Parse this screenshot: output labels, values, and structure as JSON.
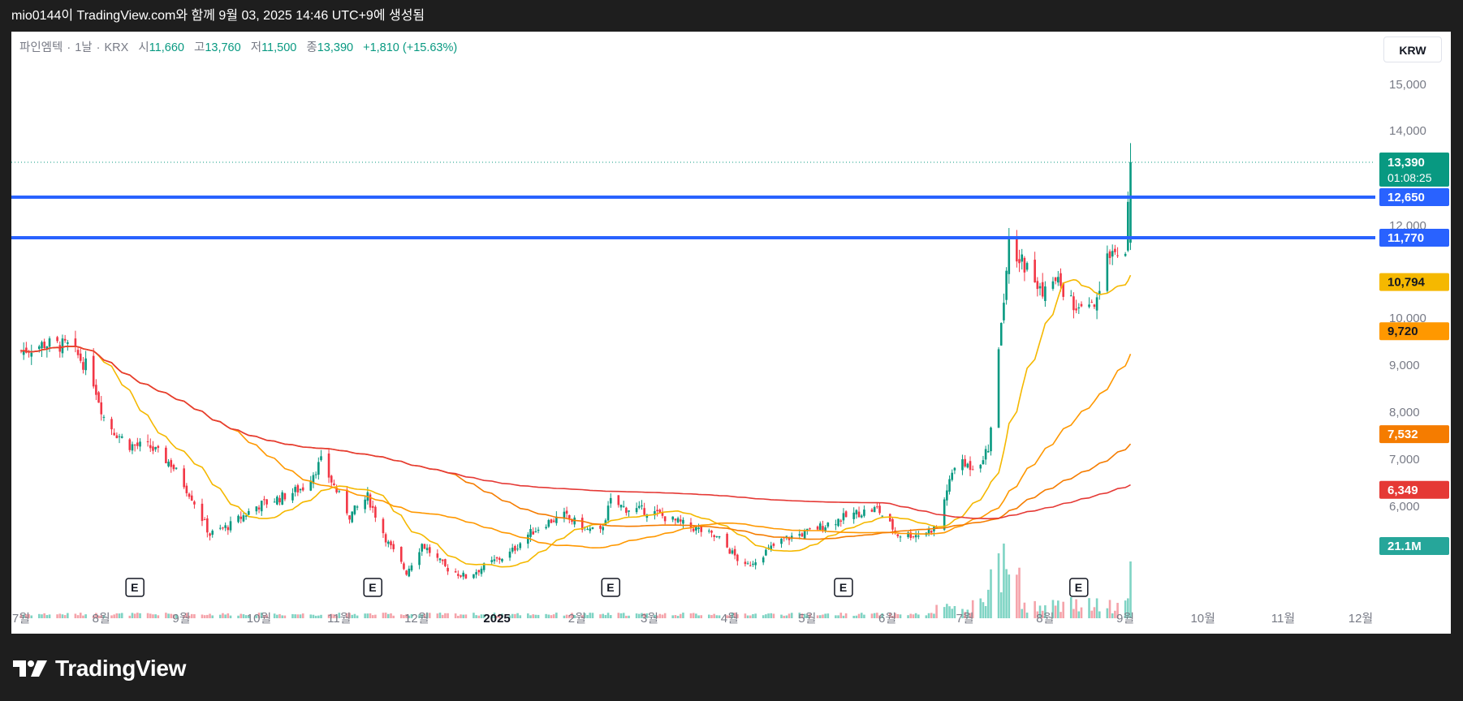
{
  "topbar": {
    "caption": "mio0144이 TradingView.com와 함께 9월 03, 2025 14:46 UTC+9에 생성됨"
  },
  "legend": {
    "symbol": "파인엠텍",
    "interval": "1날",
    "exchange": "KRX",
    "open_label": "시",
    "open": "11,660",
    "high_label": "고",
    "high": "13,760",
    "low_label": "저",
    "low": "11,500",
    "close_label": "종",
    "close": "13,390",
    "change": "+1,810 (+15.63%)"
  },
  "currency": "KRW",
  "footer": {
    "brand": "TradingView"
  },
  "colors": {
    "up": "#089981",
    "down": "#f23645",
    "hline": "#2962ff",
    "ma20": "#f5b800",
    "ma60": "#ff9800",
    "ma120": "#f57c00",
    "ma240": "#e53935",
    "volume_up": "#7fd4c4",
    "volume_down": "#f5a3aa"
  },
  "chart_data": {
    "type": "candlestick",
    "y_ticks": [
      "15,000",
      "14,000",
      "12,000",
      "10,000",
      "9,000",
      "8,000",
      "7,000",
      "6,000"
    ],
    "y_tick_values": [
      15000,
      14000,
      12000,
      10000,
      9000,
      8000,
      7000,
      6000
    ],
    "x_ticks": [
      {
        "label": "7월",
        "date": "2024-07-01"
      },
      {
        "label": "8월",
        "date": "2024-08-01"
      },
      {
        "label": "9월",
        "date": "2024-09-01"
      },
      {
        "label": "10월",
        "date": "2024-10-01"
      },
      {
        "label": "11월",
        "date": "2024-11-01"
      },
      {
        "label": "12월",
        "date": "2024-12-01"
      },
      {
        "label": "2025",
        "date": "2025-01-01"
      },
      {
        "label": "2월",
        "date": "2025-02-01"
      },
      {
        "label": "3월",
        "date": "2025-03-01"
      },
      {
        "label": "4월",
        "date": "2025-04-01"
      },
      {
        "label": "5월",
        "date": "2025-05-01"
      },
      {
        "label": "6월",
        "date": "2025-06-01"
      },
      {
        "label": "7월",
        "date": "2025-07-01"
      },
      {
        "label": "8월",
        "date": "2025-08-01"
      },
      {
        "label": "9월",
        "date": "2025-09-01"
      },
      {
        "label": "10월",
        "date": "2025-10-01"
      },
      {
        "label": "11월",
        "date": "2025-11-01"
      },
      {
        "label": "12월",
        "date": "2025-12-01"
      }
    ],
    "horizontal_lines": [
      {
        "value": 12650,
        "label": "12,650"
      },
      {
        "value": 11770,
        "label": "11,770"
      }
    ],
    "last_price": {
      "value": 13390,
      "label": "13,390",
      "countdown": "01:08:25"
    },
    "moving_averages": [
      {
        "label": "10,794",
        "last": 10794
      },
      {
        "label": "9,720",
        "last": 9720
      },
      {
        "label": "7,532",
        "last": 7532
      },
      {
        "label": "6,349",
        "last": 6349
      }
    ],
    "volume": {
      "label": "21.1M",
      "last": 21100000
    },
    "earnings_marker": "E",
    "earnings_dates": [
      "2024-08-14",
      "2024-11-14",
      "2025-02-14",
      "2025-05-15",
      "2025-08-14"
    ],
    "price_anchors": [
      {
        "date": "2024-07-01",
        "close": 9300
      },
      {
        "date": "2024-07-10",
        "close": 9450
      },
      {
        "date": "2024-07-20",
        "close": 9400
      },
      {
        "date": "2024-07-28",
        "close": 8850
      },
      {
        "date": "2024-08-02",
        "close": 7900
      },
      {
        "date": "2024-08-06",
        "close": 7600
      },
      {
        "date": "2024-08-12",
        "close": 7300
      },
      {
        "date": "2024-08-20",
        "close": 7250
      },
      {
        "date": "2024-08-28",
        "close": 6900
      },
      {
        "date": "2024-09-05",
        "close": 6200
      },
      {
        "date": "2024-09-12",
        "close": 5400
      },
      {
        "date": "2024-09-20",
        "close": 5600
      },
      {
        "date": "2024-09-30",
        "close": 6000
      },
      {
        "date": "2024-10-10",
        "close": 6200
      },
      {
        "date": "2024-10-18",
        "close": 6400
      },
      {
        "date": "2024-10-25",
        "close": 6950
      },
      {
        "date": "2024-11-05",
        "close": 5800
      },
      {
        "date": "2024-11-12",
        "close": 6200
      },
      {
        "date": "2024-11-20",
        "close": 5200
      },
      {
        "date": "2024-11-27",
        "close": 4600
      },
      {
        "date": "2024-12-03",
        "close": 5200
      },
      {
        "date": "2024-12-12",
        "close": 4700
      },
      {
        "date": "2024-12-20",
        "close": 4500
      },
      {
        "date": "2024-12-28",
        "close": 4750
      },
      {
        "date": "2025-01-06",
        "close": 5000
      },
      {
        "date": "2025-01-13",
        "close": 5400
      },
      {
        "date": "2025-01-20",
        "close": 5650
      },
      {
        "date": "2025-01-27",
        "close": 5800
      },
      {
        "date": "2025-02-05",
        "close": 5500
      },
      {
        "date": "2025-02-10",
        "close": 5450
      },
      {
        "date": "2025-02-14",
        "close": 6100
      },
      {
        "date": "2025-02-20",
        "close": 5950
      },
      {
        "date": "2025-03-01",
        "close": 5900
      },
      {
        "date": "2025-03-10",
        "close": 5700
      },
      {
        "date": "2025-03-20",
        "close": 5500
      },
      {
        "date": "2025-03-28",
        "close": 5300
      },
      {
        "date": "2025-04-07",
        "close": 4700
      },
      {
        "date": "2025-04-14",
        "close": 5000
      },
      {
        "date": "2025-04-22",
        "close": 5300
      },
      {
        "date": "2025-05-01",
        "close": 5450
      },
      {
        "date": "2025-05-12",
        "close": 5700
      },
      {
        "date": "2025-05-20",
        "close": 5850
      },
      {
        "date": "2025-05-28",
        "close": 5950
      },
      {
        "date": "2025-06-05",
        "close": 5400
      },
      {
        "date": "2025-06-13",
        "close": 5400
      },
      {
        "date": "2025-06-20",
        "close": 5550
      },
      {
        "date": "2025-06-27",
        "close": 6900
      },
      {
        "date": "2025-07-05",
        "close": 6850
      },
      {
        "date": "2025-07-10",
        "close": 7200
      },
      {
        "date": "2025-07-14",
        "close": 9400
      },
      {
        "date": "2025-07-18",
        "close": 11600
      },
      {
        "date": "2025-07-23",
        "close": 11300
      },
      {
        "date": "2025-07-30",
        "close": 10600
      },
      {
        "date": "2025-08-06",
        "close": 10800
      },
      {
        "date": "2025-08-14",
        "close": 10100
      },
      {
        "date": "2025-08-21",
        "close": 10300
      },
      {
        "date": "2025-08-26",
        "close": 11500
      },
      {
        "date": "2025-09-01",
        "close": 11580
      },
      {
        "date": "2025-09-03",
        "close": 13390
      }
    ]
  }
}
